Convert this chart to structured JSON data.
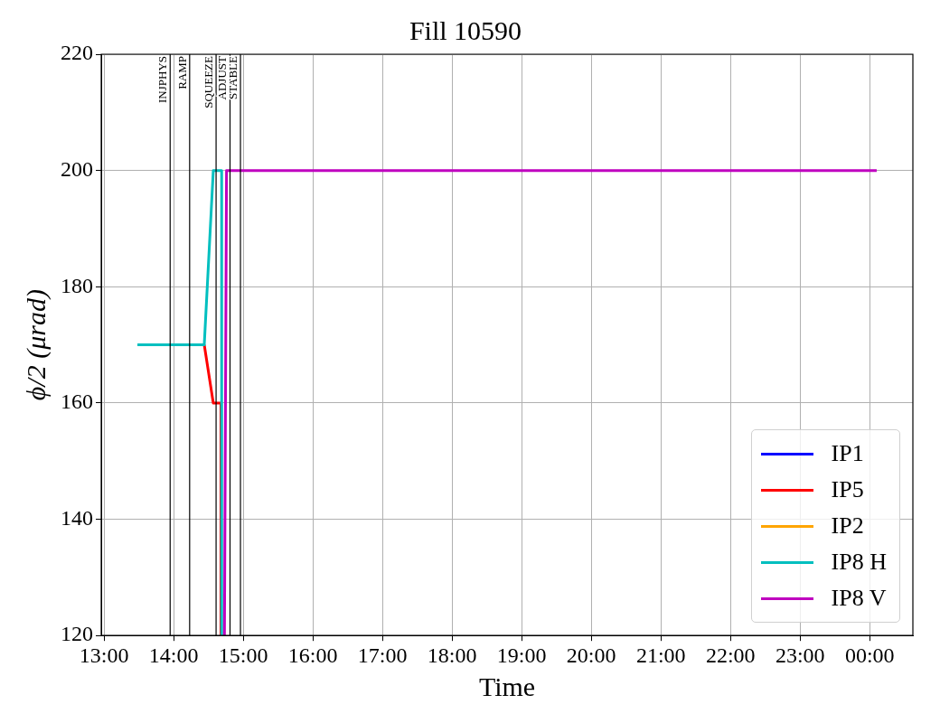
{
  "chart_data": {
    "type": "line",
    "title": "Fill 10590",
    "xlabel": "Time",
    "ylabel": "ϕ/2 (μrad)",
    "xlim": [
      12.96,
      24.62
    ],
    "xticks": [
      {
        "value": 13,
        "label": "13:00"
      },
      {
        "value": 14,
        "label": "14:00"
      },
      {
        "value": 15,
        "label": "15:00"
      },
      {
        "value": 16,
        "label": "16:00"
      },
      {
        "value": 17,
        "label": "17:00"
      },
      {
        "value": 18,
        "label": "18:00"
      },
      {
        "value": 19,
        "label": "19:00"
      },
      {
        "value": 20,
        "label": "20:00"
      },
      {
        "value": 21,
        "label": "21:00"
      },
      {
        "value": 22,
        "label": "22:00"
      },
      {
        "value": 23,
        "label": "23:00"
      },
      {
        "value": 24,
        "label": "00:00"
      }
    ],
    "ylim": [
      120,
      220
    ],
    "yticks": [
      120,
      140,
      160,
      180,
      200,
      220
    ],
    "grid": true,
    "legend": "bottom right",
    "marker": "none",
    "line_style": "solid",
    "series": [
      {
        "name": "IP1",
        "color": "#0000ff"
      },
      {
        "name": "IP5",
        "color": "#ff0000",
        "x": [
          14.44,
          14.57,
          14.68,
          14.68
        ],
        "values": [
          170,
          160,
          160,
          120
        ]
      },
      {
        "name": "IP2",
        "color": "#ffa500"
      },
      {
        "name": "IP8 H",
        "color": "#00bfbf",
        "x": [
          13.48,
          14.44,
          14.57,
          14.69,
          14.69
        ],
        "values": [
          170,
          170,
          200,
          200,
          120
        ]
      },
      {
        "name": "IP8 V",
        "color": "#bf00bf",
        "x": [
          14.73,
          14.76,
          24.1
        ],
        "values": [
          120,
          200,
          200
        ]
      }
    ],
    "ref_lines": [
      {
        "axis": "x",
        "value": 13.95,
        "label": "INJPHYS",
        "color": "#000000"
      },
      {
        "axis": "x",
        "value": 14.23,
        "label": "RAMP",
        "color": "#000000"
      },
      {
        "axis": "x",
        "value": 14.61,
        "label": "SQUEEZE",
        "color": "#000000"
      },
      {
        "axis": "x",
        "value": 14.81,
        "label": "ADJUST",
        "color": "#000000"
      },
      {
        "axis": "x",
        "value": 14.96,
        "label": "STABLE",
        "color": "#000000"
      }
    ]
  }
}
